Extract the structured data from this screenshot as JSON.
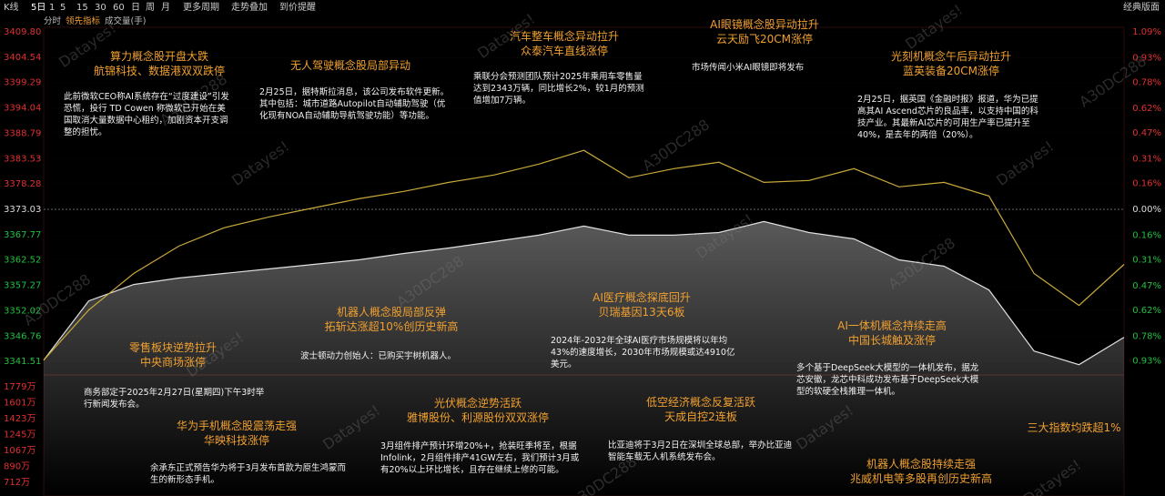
{
  "toolbar": {
    "left": [
      "K线",
      "5日",
      "1",
      "5",
      "15",
      "30",
      "60",
      "日",
      "周",
      "月",
      "更多周期",
      "走势叠加",
      "到价提醒"
    ],
    "right": "经典版面"
  },
  "subbar": [
    "分时",
    "领先指标",
    "成交量(手)"
  ],
  "watermarks": [
    "Datayes!",
    "A30DC288"
  ],
  "chart_data": {
    "type": "line",
    "ylim": [
      3336.26,
      3409.8
    ],
    "yticks": [
      {
        "value": 3409.8,
        "label": "3409.80"
      },
      3404.54,
      3399.29,
      3394.04,
      3388.79,
      3383.53,
      {
        "value": 3378.28,
        "label": "3378.28"
      },
      3373.03,
      3367.77,
      3362.52,
      3357.27,
      3352.02,
      3346.76,
      3341.51
    ],
    "y2lim": [
      -1.09,
      1.09
    ],
    "y2ticks": [
      {
        "value": 1.09,
        "label": "1.09%"
      },
      {
        "value": 0.93,
        "label": "0.93%"
      },
      {
        "value": 0.78,
        "label": "0.78%"
      },
      {
        "value": 0.62,
        "label": "0.62%"
      },
      {
        "value": 0.47,
        "label": "0.47%"
      },
      {
        "value": 0.31,
        "label": "0.31%"
      },
      {
        "value": 0.16,
        "label": "0.16%"
      },
      {
        "value": 0,
        "label": "0.00%"
      },
      {
        "value": -0.16,
        "label": "0.16%"
      },
      {
        "value": -0.31,
        "label": "0.31%"
      },
      {
        "value": -0.47,
        "label": "0.47%"
      },
      {
        "value": -0.62,
        "label": "0.62%"
      },
      {
        "value": -0.78,
        "label": "0.78%"
      },
      {
        "value": -0.93,
        "label": "0.93%"
      }
    ],
    "vlim": [
      0,
      1779
    ],
    "vticks": [
      {
        "value": 1779,
        "label": "1779万"
      },
      {
        "value": 1601,
        "label": "1601万"
      },
      {
        "value": 1423,
        "label": "1423万"
      },
      {
        "value": 1245,
        "label": "1245万"
      },
      {
        "value": 1067,
        "label": "1067万"
      },
      {
        "value": 890,
        "label": "890万"
      },
      {
        "value": 712,
        "label": "712万"
      }
    ],
    "series": [
      {
        "color": "#e0e0e0",
        "values": [
          3341.78,
          3354.06,
          3357.46,
          3358.79,
          3359.73,
          3360.68,
          3361.62,
          3362.56,
          3363.89,
          3365.02,
          3366.34,
          3367.67,
          3369.56,
          3367.67,
          3367.67,
          3368.23,
          3370.5,
          3368.23,
          3366.91,
          3362.56,
          3361.24,
          3356.33,
          3343.67,
          3340.84,
          3346.51
        ]
      },
      {
        "color": "#c8a93a",
        "values": [
          3341.78,
          3352.17,
          3359.73,
          3365.4,
          3369.18,
          3371.45,
          3373.33,
          3375.22,
          3376.74,
          3378.62,
          3380.14,
          3382.4,
          3385.24,
          3379.57,
          3381.46,
          3382.78,
          3378.62,
          3379.0,
          3381.46,
          3377.68,
          3378.62,
          3375.79,
          3359.73,
          3353.12,
          3361.62
        ]
      }
    ]
  },
  "annotations": [
    {
      "title": [
        "算力概念股开盘大跌",
        "航锦科技、数据港双双跌停"
      ],
      "body": "此前微软CEO称AI系统存在“过度建设”引发恐慌，投行 TD Cowen 称微软已开始在美国取消大量数据中心租约，加剧资本开支调整的担忧。"
    },
    {
      "title": [
        "无人驾驶概念股局部异动"
      ],
      "body": "2月25日，据特斯拉消息，该公司发布软件更新。其中包括：城市道路Autopilot自动辅助驾驶（优化现有NOA自动辅助导航驾驶功能）等功能。"
    },
    {
      "title": [
        "汽车整车概念异动拉升",
        "众泰汽车直线涨停"
      ],
      "body": "乘联分会预测团队预计2025年乘用车零售量达到2343万辆，同比增长2%，较1月的预测值增加7万辆。"
    },
    {
      "title": [
        "AI眼镜概念股异动拉升",
        "云天励飞20CM涨停"
      ],
      "body": "市场传闻小米AI眼镜即将发布"
    },
    {
      "title": [
        "光刻机概念午后异动拉升",
        "蓝英装备20CM涨停"
      ],
      "body": "2月25日，据英国《金融时报》报道，华为已提高其AI Ascend芯片的良品率，以支持中国的科技产业。其最新AI芯片的可用生产率已提升至40%，是去年的两倍（20%）。"
    },
    {
      "title": [
        "机器人概念股局部反弹",
        "拓斩达涨超10%创历史新高"
      ],
      "body": "波士顿动力创始人：已购买宇树机器人。"
    },
    {
      "title": [
        "AI医疗概念探底回升",
        "贝瑞基因13天6板"
      ],
      "body": "2024年-2032年全球AI医疗市场规模将以年均43%的速度增长，2030年市场规模或达4910亿美元。"
    },
    {
      "title": [
        "AI一体机概念持续走高",
        "中国长城触及涨停"
      ],
      "body": "多个基于DeepSeek大模型的一体机发布，据龙芯安徽，龙芯中科成功发布基于DeepSeek大模型的软硬全栈推理一体机。"
    },
    {
      "title": [
        "零售板块逆势拉升",
        "中央商场涨停"
      ],
      "body": "商务部定于2025年2月27日(星期四)下午3时举行新闻发布会。"
    },
    {
      "title": [
        "华为手机概念股震荡走强",
        "华映科技涨停"
      ],
      "body": "余承东正式预告华为将于3月发布首款为原生鸿蒙而生的新形态手机。"
    },
    {
      "title": [
        "光伏概念逆势活跃",
        "雅博股份、利源股份双双涨停"
      ],
      "body": "3月组件排产预计环增20%+，抢装旺季将至，根据Infolink，2月组件排产41GW左右，我们预计3月或有20%以上环比增长，且存在继续上修的可能。"
    },
    {
      "title": [
        "低空经济概念反复活跃",
        "天成自控2连板"
      ],
      "body": "比亚迪将于3月2日在深圳全球总部，举办比亚迪智能车载无人机系统发布会。"
    },
    {
      "title": [
        "三大指数均跌超1%"
      ]
    },
    {
      "title": [
        "机器人概念股持续走强",
        "兆威机电等多股再创历史新高"
      ]
    }
  ]
}
